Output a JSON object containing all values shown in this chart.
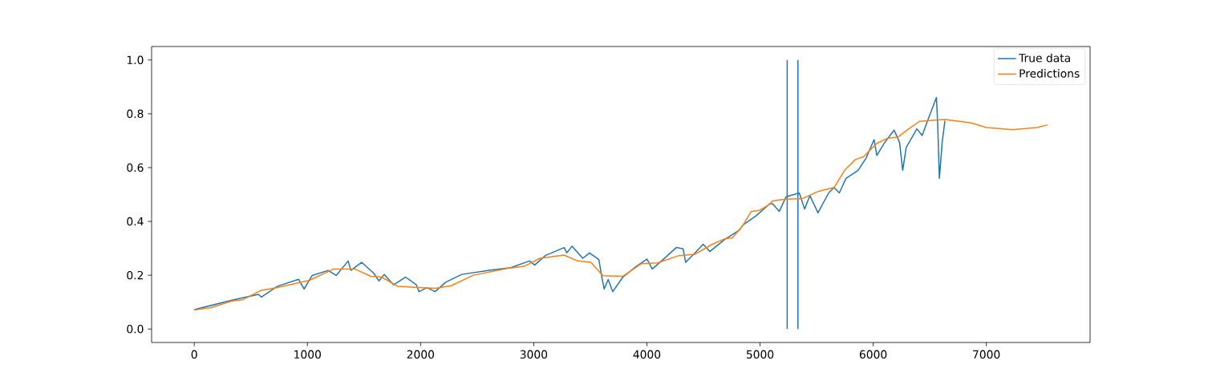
{
  "chart_data": {
    "type": "line",
    "xlim": [
      -377,
      7917
    ],
    "ylim": [
      -0.05,
      1.05
    ],
    "xticks": [
      0,
      1000,
      2000,
      3000,
      4000,
      5000,
      6000,
      7000
    ],
    "yticks": [
      {
        "value": 0,
        "label": "0.0"
      },
      {
        "value": 0.2,
        "label": "0.2"
      },
      {
        "value": 0.4,
        "label": "0.4"
      },
      {
        "value": 0.6,
        "label": "0.6"
      },
      {
        "value": 0.8,
        "label": "0.8"
      },
      {
        "value": 1,
        "label": "1.0"
      }
    ],
    "legend": "top right",
    "grid": false,
    "marker": "none",
    "line_style": "solid",
    "ref_lines": [
      {
        "axis": "x",
        "value": 5240,
        "color": "#1f77b4"
      },
      {
        "axis": "x",
        "value": 5335,
        "color": "#1f77b4"
      }
    ],
    "series": [
      {
        "name": "True data",
        "color": "#1f77b4",
        "x": [
          0,
          333,
          567,
          593,
          735,
          921,
          971,
          1042,
          1183,
          1254,
          1360,
          1384,
          1479,
          1585,
          1632,
          1679,
          1762,
          1868,
          1963,
          1986,
          2057,
          2128,
          2222,
          2364,
          2607,
          2796,
          2962,
          3009,
          3103,
          3269,
          3292,
          3339,
          3434,
          3493,
          3576,
          3599,
          3623,
          3658,
          3698,
          3788,
          3906,
          4001,
          4048,
          4143,
          4260,
          4320,
          4343,
          4426,
          4497,
          4556,
          4685,
          4815,
          4851,
          4969,
          5087,
          5111,
          5170,
          5229,
          5347,
          5394,
          5441,
          5512,
          5607,
          5654,
          5701,
          5760,
          5867,
          5937,
          6008,
          6032,
          6103,
          6185,
          6233,
          6261,
          6292,
          6386,
          6433,
          6481,
          6559,
          6570,
          6585,
          6610,
          6634
        ],
        "values": [
          0.072,
          0.107,
          0.129,
          0.119,
          0.159,
          0.185,
          0.149,
          0.199,
          0.218,
          0.199,
          0.253,
          0.218,
          0.248,
          0.208,
          0.179,
          0.203,
          0.164,
          0.193,
          0.164,
          0.139,
          0.154,
          0.139,
          0.174,
          0.203,
          0.218,
          0.228,
          0.253,
          0.238,
          0.273,
          0.303,
          0.283,
          0.308,
          0.263,
          0.283,
          0.258,
          0.199,
          0.149,
          0.184,
          0.139,
          0.193,
          0.233,
          0.26,
          0.223,
          0.258,
          0.303,
          0.298,
          0.248,
          0.283,
          0.315,
          0.288,
          0.332,
          0.367,
          0.387,
          0.422,
          0.466,
          0.466,
          0.437,
          0.491,
          0.506,
          0.446,
          0.496,
          0.432,
          0.506,
          0.526,
          0.506,
          0.56,
          0.59,
          0.635,
          0.704,
          0.645,
          0.694,
          0.739,
          0.694,
          0.59,
          0.675,
          0.744,
          0.719,
          0.774,
          0.861,
          0.764,
          0.56,
          0.694,
          0.774
        ]
      },
      {
        "name": "Predictions",
        "color": "#ff7f0e",
        "x": [
          0,
          144,
          333,
          428,
          593,
          735,
          1018,
          1231,
          1419,
          1561,
          1656,
          1797,
          1986,
          2128,
          2270,
          2466,
          2773,
          2914,
          3056,
          3269,
          3387,
          3505,
          3611,
          3788,
          3953,
          4095,
          4284,
          4426,
          4568,
          4685,
          4756,
          4851,
          4922,
          4993,
          5087,
          5111,
          5229,
          5371,
          5512,
          5654,
          5748,
          5843,
          5914,
          6032,
          6126,
          6221,
          6315,
          6410,
          6528,
          6634,
          6858,
          7000,
          7236,
          7449,
          7543
        ],
        "values": [
          0.071,
          0.079,
          0.104,
          0.109,
          0.144,
          0.154,
          0.181,
          0.223,
          0.223,
          0.196,
          0.193,
          0.159,
          0.154,
          0.151,
          0.161,
          0.2,
          0.226,
          0.233,
          0.263,
          0.275,
          0.253,
          0.248,
          0.198,
          0.196,
          0.243,
          0.246,
          0.273,
          0.278,
          0.313,
          0.335,
          0.339,
          0.387,
          0.437,
          0.441,
          0.464,
          0.476,
          0.483,
          0.484,
          0.511,
          0.526,
          0.59,
          0.63,
          0.64,
          0.69,
          0.709,
          0.714,
          0.744,
          0.772,
          0.776,
          0.779,
          0.767,
          0.749,
          0.741,
          0.749,
          0.759
        ]
      }
    ]
  }
}
